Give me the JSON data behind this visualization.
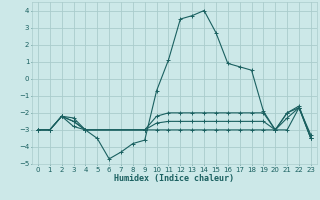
{
  "title": "",
  "xlabel": "Humidex (Indice chaleur)",
  "xlim": [
    -0.5,
    23.5
  ],
  "ylim": [
    -5,
    4.5
  ],
  "yticks": [
    -5,
    -4,
    -3,
    -2,
    -1,
    0,
    1,
    2,
    3,
    4
  ],
  "xticks": [
    0,
    1,
    2,
    3,
    4,
    5,
    6,
    7,
    8,
    9,
    10,
    11,
    12,
    13,
    14,
    15,
    16,
    17,
    18,
    19,
    20,
    21,
    22,
    23
  ],
  "background_color": "#cce8e8",
  "grid_color": "#aacccc",
  "line_color": "#1a6060",
  "lines": [
    {
      "x": [
        0,
        1,
        2,
        3,
        4,
        5,
        6,
        7,
        8,
        9,
        10,
        11,
        12,
        13,
        14,
        15,
        16,
        17,
        18,
        19,
        20,
        21,
        22,
        23
      ],
      "y": [
        -3,
        -3,
        -2.2,
        -2.3,
        -3,
        -3.5,
        -4.7,
        -4.3,
        -3.8,
        -3.6,
        -0.7,
        1.1,
        3.5,
        3.7,
        4.0,
        2.7,
        0.9,
        0.7,
        0.5,
        -1.9,
        -3.0,
        -2.0,
        -1.6,
        -3.5
      ]
    },
    {
      "x": [
        0,
        1,
        2,
        3,
        4,
        9,
        10,
        11,
        12,
        13,
        14,
        15,
        16,
        17,
        18,
        19,
        20,
        21,
        22,
        23
      ],
      "y": [
        -3,
        -3,
        -2.2,
        -2.8,
        -3.0,
        -3.0,
        -2.2,
        -2.0,
        -2.0,
        -2.0,
        -2.0,
        -2.0,
        -2.0,
        -2.0,
        -2.0,
        -2.0,
        -3.0,
        -2.0,
        -1.7,
        -3.3
      ]
    },
    {
      "x": [
        0,
        1,
        2,
        3,
        4,
        9,
        10,
        11,
        12,
        13,
        14,
        15,
        16,
        17,
        18,
        19,
        20,
        21,
        22,
        23
      ],
      "y": [
        -3,
        -3,
        -2.2,
        -2.5,
        -3.0,
        -3.0,
        -2.6,
        -2.5,
        -2.5,
        -2.5,
        -2.5,
        -2.5,
        -2.5,
        -2.5,
        -2.5,
        -2.5,
        -3.0,
        -2.3,
        -1.7,
        -3.5
      ]
    },
    {
      "x": [
        0,
        1,
        2,
        3,
        4,
        9,
        10,
        11,
        12,
        13,
        14,
        15,
        16,
        17,
        18,
        19,
        20,
        21,
        22,
        23
      ],
      "y": [
        -3,
        -3,
        -2.2,
        -2.5,
        -3.0,
        -3.0,
        -3.0,
        -3.0,
        -3.0,
        -3.0,
        -3.0,
        -3.0,
        -3.0,
        -3.0,
        -3.0,
        -3.0,
        -3.0,
        -3.0,
        -1.7,
        -3.5
      ]
    }
  ]
}
